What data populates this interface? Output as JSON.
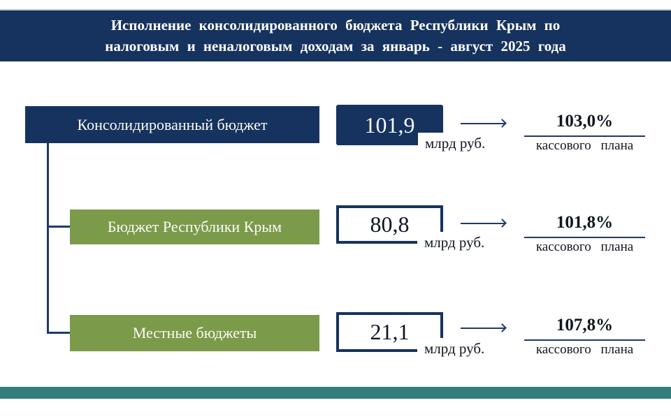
{
  "title": {
    "line1": "Исполнение консолидированного бюджета Республики Крым по",
    "line2": "налоговым и неналоговым доходам за январь - август 2025 года"
  },
  "nodes": [
    {
      "label": "Консолидированный бюджет",
      "value": "101,9",
      "unit": "млрд руб.",
      "percent": "103,0%",
      "percent_caption": "кассового плана"
    },
    {
      "label": "Бюджет Республики Крым",
      "value": "80,8",
      "unit": "млрд руб.",
      "percent": "101,8%",
      "percent_caption": "кассового плана"
    },
    {
      "label": "Местные бюджеты",
      "value": "21,1",
      "unit": "млрд руб.",
      "percent": "107,8%",
      "percent_caption": "кассового плана"
    }
  ],
  "colors": {
    "navy": "#16325e",
    "green": "#7b9a4a",
    "connector": "#1f3a66",
    "text_dark": "#10151f",
    "footer_teal": "#337e7c",
    "background": "#ffffff"
  }
}
